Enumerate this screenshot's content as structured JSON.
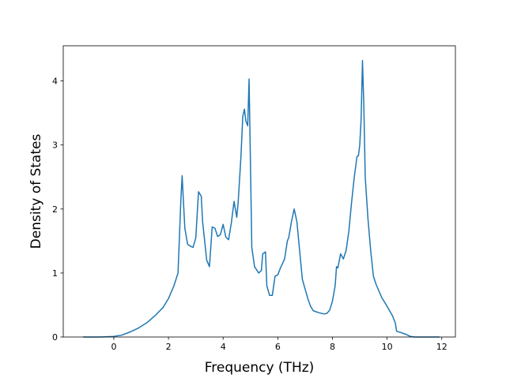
{
  "chart_data": {
    "type": "line",
    "xlabel": "Frequency (THz)",
    "ylabel": "Density of States",
    "xlim": [
      -1.85,
      12.5
    ],
    "ylim": [
      0,
      4.55
    ],
    "xticks": [
      0,
      2,
      4,
      6,
      8,
      10,
      12
    ],
    "yticks": [
      0,
      1,
      2,
      3,
      4
    ],
    "xtick_labels": [
      "0",
      "2",
      "4",
      "6",
      "8",
      "10",
      "12"
    ],
    "ytick_labels": [
      "0",
      "1",
      "2",
      "3",
      "4"
    ],
    "grid": false,
    "legend": "none",
    "line_color": "#1f77b4",
    "series": [
      {
        "x": [
          -1.1,
          -0.5,
          0,
          0.3,
          0.6,
          0.9,
          1.2,
          1.5,
          1.8,
          2.0,
          2.2,
          2.35,
          2.45,
          2.5,
          2.55,
          2.6,
          2.7,
          2.8,
          2.9,
          3.0,
          3.1,
          3.2,
          3.25,
          3.3,
          3.4,
          3.5,
          3.6,
          3.7,
          3.8,
          3.9,
          4.0,
          4.1,
          4.2,
          4.3,
          4.4,
          4.5,
          4.55,
          4.65,
          4.72,
          4.78,
          4.83,
          4.9,
          4.95,
          5.05,
          5.15,
          5.3,
          5.4,
          5.45,
          5.55,
          5.6,
          5.7,
          5.8,
          5.9,
          6.0,
          6.1,
          6.25,
          6.35,
          6.4,
          6.5,
          6.6,
          6.7,
          6.8,
          6.9,
          7.0,
          7.1,
          7.2,
          7.3,
          7.5,
          7.7,
          7.8,
          7.9,
          8.0,
          8.1,
          8.15,
          8.2,
          8.3,
          8.4,
          8.5,
          8.6,
          8.7,
          8.8,
          8.9,
          8.95,
          9.0,
          9.05,
          9.1,
          9.15,
          9.2,
          9.3,
          9.4,
          9.5,
          9.6,
          9.8,
          10.0,
          10.2,
          10.3,
          10.35,
          10.5,
          10.7,
          10.85,
          11.0,
          11.5,
          11.9
        ],
        "y": [
          0,
          0,
          0.01,
          0.03,
          0.08,
          0.14,
          0.22,
          0.33,
          0.46,
          0.6,
          0.8,
          1.0,
          2.1,
          2.52,
          2.1,
          1.7,
          1.45,
          1.42,
          1.4,
          1.55,
          2.27,
          2.2,
          1.8,
          1.6,
          1.2,
          1.1,
          1.72,
          1.7,
          1.57,
          1.6,
          1.76,
          1.56,
          1.52,
          1.78,
          2.12,
          1.87,
          2.1,
          2.8,
          3.45,
          3.56,
          3.38,
          3.3,
          4.03,
          1.4,
          1.1,
          1.0,
          1.04,
          1.3,
          1.33,
          0.8,
          0.65,
          0.65,
          0.95,
          0.97,
          1.08,
          1.22,
          1.5,
          1.55,
          1.8,
          2.0,
          1.8,
          1.35,
          0.9,
          0.75,
          0.6,
          0.48,
          0.41,
          0.38,
          0.36,
          0.37,
          0.42,
          0.56,
          0.8,
          1.1,
          1.08,
          1.3,
          1.22,
          1.35,
          1.65,
          2.1,
          2.5,
          2.82,
          2.83,
          3.0,
          3.4,
          4.32,
          3.6,
          2.5,
          1.85,
          1.35,
          0.95,
          0.82,
          0.62,
          0.48,
          0.33,
          0.22,
          0.09,
          0.07,
          0.04,
          0.01,
          0,
          0,
          0
        ]
      }
    ]
  }
}
